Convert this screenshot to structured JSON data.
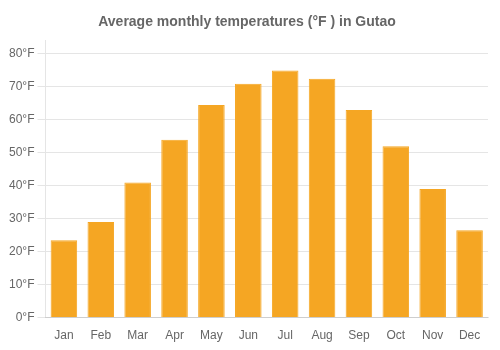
{
  "chart_data": {
    "type": "bar",
    "title": "Average monthly temperatures (°F ) in Gutao",
    "categories": [
      "Jan",
      "Feb",
      "Mar",
      "Apr",
      "May",
      "Jun",
      "Jul",
      "Aug",
      "Sep",
      "Oct",
      "Nov",
      "Dec"
    ],
    "values": [
      23.5,
      29.0,
      41.0,
      54.0,
      64.5,
      71.0,
      75.0,
      72.5,
      63.0,
      52.0,
      39.0,
      26.5
    ],
    "color": "#F5A623",
    "ylim": [
      0,
      84
    ],
    "yticks": [
      {
        "value": 0,
        "label": "0°F"
      },
      {
        "value": 10,
        "label": "10°F"
      },
      {
        "value": 20,
        "label": "20°F"
      },
      {
        "value": 30,
        "label": "30°F"
      },
      {
        "value": 40,
        "label": "40°F"
      },
      {
        "value": 50,
        "label": "50°F"
      },
      {
        "value": 60,
        "label": "60°F"
      },
      {
        "value": 70,
        "label": "70°F"
      },
      {
        "value": 80,
        "label": "80°F"
      }
    ],
    "grid": true
  }
}
